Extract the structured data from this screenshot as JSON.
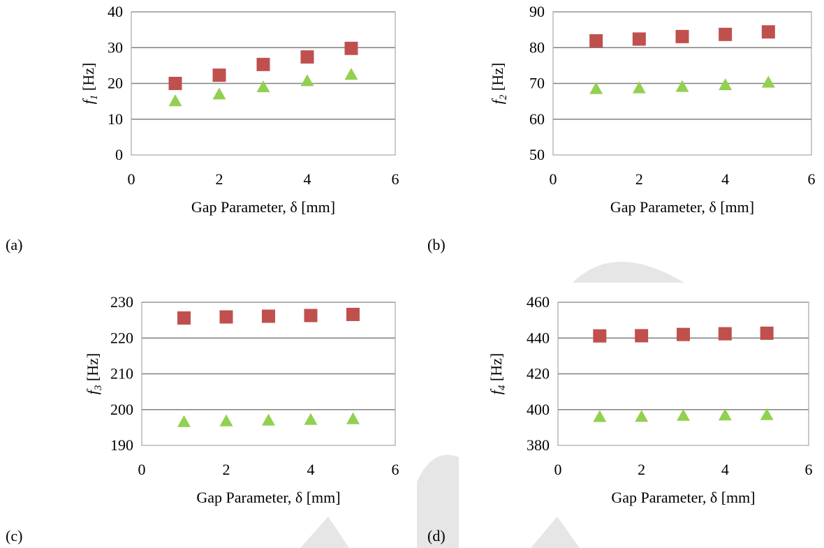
{
  "colors": {
    "series_square": "#c0504d",
    "series_triangle": "#92d050",
    "gridline": "#808080",
    "axis": "#a6a6a6",
    "watermark": "#e6e6e6"
  },
  "chart_data": [
    {
      "panel": "(a)",
      "type": "scatter",
      "xlabel": "Gap Parameter, δ [mm]",
      "ylabel": {
        "symbol": "f",
        "subscript": "1",
        "unit": "[Hz]"
      },
      "xlim": [
        0,
        6
      ],
      "ylim": [
        0,
        40
      ],
      "xticks": [
        "0",
        "2",
        "4",
        "6"
      ],
      "yticks": [
        "0",
        "10",
        "20",
        "30",
        "40"
      ],
      "grid": true,
      "series": [
        {
          "marker": "square",
          "x": [
            1,
            2,
            3,
            4,
            5
          ],
          "y": [
            20.0,
            22.3,
            25.3,
            27.4,
            29.8
          ]
        },
        {
          "marker": "triangle",
          "x": [
            1,
            2,
            3,
            4,
            5
          ],
          "y": [
            15.0,
            16.9,
            18.9,
            20.6,
            22.4
          ]
        }
      ]
    },
    {
      "panel": "(b)",
      "type": "scatter",
      "xlabel": "Gap Parameter, δ [mm]",
      "ylabel": {
        "symbol": "f",
        "subscript": "2",
        "unit": "[Hz]"
      },
      "xlim": [
        0,
        6
      ],
      "ylim": [
        50,
        90
      ],
      "xticks": [
        "0",
        "2",
        "4",
        "6"
      ],
      "yticks": [
        "50",
        "60",
        "70",
        "80",
        "90"
      ],
      "grid": true,
      "series": [
        {
          "marker": "square",
          "x": [
            1,
            2,
            3,
            4,
            5
          ],
          "y": [
            81.9,
            82.4,
            83.1,
            83.7,
            84.4
          ]
        },
        {
          "marker": "triangle",
          "x": [
            1,
            2,
            3,
            4,
            5
          ],
          "y": [
            68.4,
            68.6,
            69.0,
            69.5,
            70.2
          ]
        }
      ]
    },
    {
      "panel": "(c)",
      "type": "scatter",
      "xlabel": "Gap Parameter, δ [mm]",
      "ylabel": {
        "symbol": "f",
        "subscript": "3",
        "unit": "[Hz]"
      },
      "xlim": [
        0,
        6
      ],
      "ylim": [
        190,
        230
      ],
      "xticks": [
        "0",
        "2",
        "4",
        "6"
      ],
      "yticks": [
        "190",
        "200",
        "210",
        "220",
        "230"
      ],
      "grid": true,
      "series": [
        {
          "marker": "square",
          "x": [
            1,
            2,
            3,
            4,
            5
          ],
          "y": [
            225.6,
            225.9,
            226.1,
            226.3,
            226.6
          ]
        },
        {
          "marker": "triangle",
          "x": [
            1,
            2,
            3,
            4,
            5
          ],
          "y": [
            196.5,
            196.7,
            196.9,
            197.1,
            197.3
          ]
        }
      ]
    },
    {
      "panel": "(d)",
      "type": "scatter",
      "xlabel": "Gap Parameter, δ [mm]",
      "ylabel": {
        "symbol": "f",
        "subscript": "4",
        "unit": "[Hz]"
      },
      "xlim": [
        0,
        6
      ],
      "ylim": [
        380,
        460
      ],
      "xticks": [
        "0",
        "2",
        "4",
        "6"
      ],
      "yticks": [
        "380",
        "400",
        "420",
        "440",
        "460"
      ],
      "grid": true,
      "series": [
        {
          "marker": "square",
          "x": [
            1,
            2,
            3,
            4,
            5
          ],
          "y": [
            441.2,
            441.3,
            442.0,
            442.4,
            442.7
          ]
        },
        {
          "marker": "triangle",
          "x": [
            1,
            2,
            3,
            4,
            5
          ],
          "y": [
            395.8,
            395.9,
            396.5,
            396.7,
            396.9
          ]
        }
      ]
    }
  ]
}
